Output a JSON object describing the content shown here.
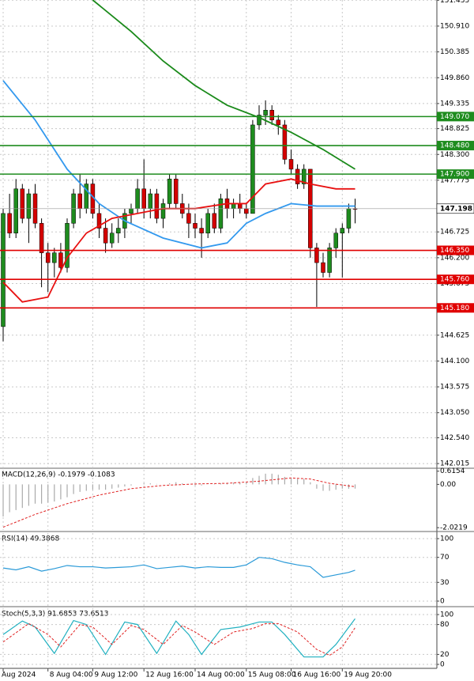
{
  "chart_data": {
    "type": "candlestick",
    "ylim": [
      141.92,
      151.44
    ],
    "yticks": [
      {
        "value": 151.435,
        "label": "151.435"
      },
      {
        "value": 150.91,
        "label": "150.910"
      },
      {
        "value": 150.385,
        "label": "150.385"
      },
      {
        "value": 149.86,
        "label": "149.860"
      },
      {
        "value": 149.335,
        "label": "149.335"
      },
      {
        "value": 148.825,
        "label": "148.825"
      },
      {
        "value": 148.3,
        "label": "148.300"
      },
      {
        "value": 147.775,
        "label": "147.775"
      },
      {
        "value": 146.725,
        "label": "146.725"
      },
      {
        "value": 146.2,
        "label": "146.200"
      },
      {
        "value": 145.675,
        "label": "145.675"
      },
      {
        "value": 144.625,
        "label": "144.625"
      },
      {
        "value": 144.1,
        "label": "144.100"
      },
      {
        "value": 143.575,
        "label": "143.575"
      },
      {
        "value": 143.05,
        "label": "143.050"
      },
      {
        "value": 142.54,
        "label": "142.540"
      },
      {
        "value": 142.015,
        "label": "142.015"
      }
    ],
    "grid": true,
    "up_color": "#1e8c1e",
    "down_color": "#d40000",
    "categories": [
      "Aug 2024",
      null,
      null,
      null,
      null,
      null,
      null,
      "8 Aug 04:00",
      null,
      null,
      null,
      null,
      null,
      null,
      "9 Aug 12:00",
      null,
      null,
      null,
      null,
      null,
      null,
      null,
      "12 Aug 16:00",
      null,
      null,
      null,
      null,
      null,
      null,
      null,
      "14 Aug 00:00",
      null,
      null,
      null,
      null,
      null,
      null,
      null,
      "15 Aug 08:00",
      null,
      null,
      null,
      null,
      null,
      null,
      "16 Aug 16:00",
      null,
      null,
      null,
      null,
      null,
      null,
      null,
      "19 Aug 20:00",
      null,
      null
    ],
    "open": [
      144.8,
      147.1,
      146.7,
      147.6,
      147.0,
      147.5,
      146.9,
      146.3,
      146.1,
      146.3,
      146.0,
      146.9,
      147.5,
      147.2,
      147.7,
      147.1,
      146.8,
      146.5,
      146.7,
      146.8,
      147.1,
      147.2,
      147.6,
      147.2,
      147.5,
      147.0,
      147.3,
      147.8,
      147.3,
      147.1,
      146.9,
      146.8,
      146.7,
      147.1,
      146.8,
      147.4,
      147.2,
      147.3,
      147.2,
      147.1,
      148.9,
      149.1,
      149.2,
      149.0,
      148.9,
      148.2,
      148.0,
      147.7,
      148.0,
      146.4,
      146.1,
      145.9,
      146.4,
      146.7,
      146.8,
      147.2
    ],
    "high": [
      147.2,
      147.5,
      147.8,
      147.7,
      147.6,
      147.7,
      147.0,
      146.5,
      146.4,
      146.5,
      147.0,
      147.6,
      147.9,
      147.8,
      147.8,
      147.3,
      147.0,
      146.9,
      147.0,
      147.2,
      147.3,
      147.8,
      148.2,
      147.6,
      147.6,
      147.4,
      147.9,
      147.9,
      147.5,
      147.3,
      147.1,
      147.0,
      147.2,
      147.3,
      147.5,
      147.6,
      147.4,
      147.5,
      147.3,
      149.0,
      149.3,
      149.4,
      149.3,
      149.1,
      149.0,
      148.4,
      148.1,
      148.1,
      148.0,
      146.5,
      146.3,
      146.5,
      146.8,
      146.9,
      147.3,
      147.4
    ],
    "low": [
      144.5,
      146.6,
      146.6,
      146.9,
      146.5,
      146.8,
      145.6,
      145.5,
      145.8,
      145.9,
      145.9,
      146.8,
      147.0,
      147.1,
      147.0,
      146.6,
      146.3,
      146.4,
      146.5,
      146.6,
      146.9,
      147.1,
      147.0,
      147.0,
      146.9,
      146.8,
      147.2,
      147.2,
      147.0,
      146.6,
      146.6,
      146.2,
      146.6,
      146.7,
      146.7,
      147.0,
      147.0,
      147.1,
      147.0,
      147.1,
      148.8,
      148.9,
      148.9,
      148.7,
      148.1,
      147.9,
      147.6,
      147.6,
      146.2,
      145.2,
      145.8,
      145.8,
      146.2,
      145.8,
      146.7,
      146.9
    ],
    "close": [
      147.1,
      146.7,
      147.6,
      147.0,
      147.5,
      146.9,
      146.3,
      146.1,
      146.3,
      146.0,
      146.9,
      147.5,
      147.2,
      147.7,
      147.1,
      146.8,
      146.5,
      146.7,
      146.8,
      147.1,
      147.2,
      147.6,
      147.2,
      147.5,
      147.0,
      147.3,
      147.8,
      147.3,
      147.1,
      146.9,
      146.8,
      146.7,
      147.1,
      146.8,
      147.4,
      147.2,
      147.3,
      147.2,
      147.1,
      148.9,
      149.1,
      149.2,
      149.0,
      148.9,
      148.2,
      148.0,
      147.7,
      148.0,
      146.4,
      146.1,
      145.9,
      146.4,
      146.7,
      146.8,
      147.2,
      147.198
    ],
    "lines": [
      {
        "color": "#3399ee",
        "x": [
          0,
          5,
          10,
          15,
          19,
          25,
          31,
          35,
          38,
          41,
          45,
          49,
          55
        ],
        "values": [
          149.8,
          149.0,
          148.0,
          147.3,
          146.95,
          146.6,
          146.4,
          146.5,
          146.9,
          147.1,
          147.3,
          147.25,
          147.25
        ]
      },
      {
        "color": "#e81010",
        "x": [
          0,
          3,
          7,
          10,
          13,
          17,
          21,
          25,
          30,
          35,
          38,
          41,
          45,
          48,
          52,
          55
        ],
        "values": [
          145.7,
          145.3,
          145.4,
          146.2,
          146.7,
          147.0,
          147.1,
          147.2,
          147.2,
          147.3,
          147.3,
          147.7,
          147.8,
          147.7,
          147.6,
          147.6
        ]
      },
      {
        "color": "#1a8a1a",
        "x": [
          14,
          20,
          25,
          30,
          35,
          40,
          45,
          50,
          55
        ],
        "values": [
          151.44,
          150.8,
          150.2,
          149.7,
          149.3,
          149.05,
          148.75,
          148.4,
          148.0
        ]
      }
    ],
    "levels": [
      {
        "value": 149.07,
        "label": "149.070",
        "color": "#1e8c1e"
      },
      {
        "value": 148.48,
        "label": "148.480",
        "color": "#1e8c1e"
      },
      {
        "value": 147.9,
        "label": "147.900",
        "color": "#1e8c1e"
      },
      {
        "value": 146.35,
        "label": "146.350",
        "color": "#e00000"
      },
      {
        "value": 145.76,
        "label": "145.760",
        "color": "#e00000"
      },
      {
        "value": 145.18,
        "label": "145.180",
        "color": "#e00000"
      }
    ],
    "current": {
      "value": 147.198,
      "label": "147.198"
    },
    "macd": {
      "title": "MACD(12,26,9) -0.1979 -0.1083",
      "ylim": [
        -2.09,
        0.68
      ],
      "yticks": [
        {
          "value": 0.6154,
          "label": "0.6154"
        },
        {
          "value": 0,
          "label": "0.00"
        },
        {
          "value": -2.0219,
          "label": "-2.0219"
        }
      ],
      "values": [
        -1.5,
        -1.3,
        -1.2,
        -1.1,
        -1.0,
        -0.9,
        -0.9,
        -0.85,
        -0.8,
        -0.7,
        -0.6,
        -0.45,
        -0.35,
        -0.3,
        -0.25,
        -0.25,
        -0.25,
        -0.2,
        -0.15,
        -0.1,
        -0.05,
        0.0,
        0.05,
        0.05,
        0.02,
        0.0,
        0.05,
        0.1,
        0.05,
        0.0,
        -0.05,
        -0.05,
        0.0,
        0.02,
        0.05,
        0.05,
        0.08,
        0.08,
        0.08,
        0.3,
        0.4,
        0.5,
        0.5,
        0.45,
        0.35,
        0.3,
        0.25,
        0.25,
        0.1,
        -0.2,
        -0.3,
        -0.3,
        -0.25,
        -0.2,
        -0.2,
        -0.1979
      ],
      "signal": {
        "color": "#e02020",
        "x": [
          0,
          5,
          10,
          15,
          20,
          25,
          30,
          35,
          40,
          45,
          48,
          51,
          55
        ],
        "values": [
          -2.0,
          -1.4,
          -0.9,
          -0.5,
          -0.2,
          -0.05,
          0.02,
          0.05,
          0.15,
          0.3,
          0.25,
          0.05,
          -0.1083
        ]
      }
    },
    "rsi": {
      "title": "RSI(14) 49.3868",
      "ylim": [
        0,
        100
      ],
      "yticks": [
        100,
        70,
        30,
        0
      ],
      "color": "#2a9ad8",
      "x": [
        0,
        2,
        4,
        6,
        8,
        10,
        12,
        14,
        16,
        18,
        20,
        22,
        24,
        26,
        28,
        30,
        32,
        34,
        36,
        38,
        40,
        42,
        44,
        46,
        48,
        50,
        52,
        54,
        55
      ],
      "values": [
        53,
        50,
        55,
        48,
        52,
        57,
        55,
        55,
        53,
        54,
        55,
        58,
        52,
        54,
        56,
        53,
        55,
        54,
        54,
        58,
        70,
        68,
        62,
        58,
        55,
        38,
        42,
        46,
        49.3868
      ]
    },
    "stoch": {
      "title": "Stoch(5,3,3) 91.6853 73.6513",
      "ylim": [
        0,
        100
      ],
      "yticks": [
        100,
        80,
        20,
        0
      ],
      "k": {
        "color": "#20b0c0",
        "x": [
          0,
          3,
          5,
          8,
          11,
          13,
          16,
          19,
          21,
          24,
          27,
          29,
          31,
          34,
          37,
          40,
          42,
          44,
          47,
          50,
          52,
          55
        ],
        "values": [
          60,
          87,
          75,
          22,
          88,
          80,
          20,
          85,
          80,
          22,
          87,
          60,
          20,
          70,
          75,
          85,
          85,
          60,
          15,
          15,
          40,
          91.6853
        ]
      },
      "d": {
        "color": "#e02020",
        "x": [
          0,
          4,
          7,
          9,
          12,
          14,
          17,
          20,
          22,
          25,
          28,
          30,
          33,
          36,
          39,
          41,
          43,
          46,
          49,
          51,
          53,
          55
        ],
        "values": [
          45,
          82,
          60,
          35,
          80,
          75,
          40,
          78,
          70,
          40,
          78,
          65,
          40,
          65,
          72,
          82,
          82,
          65,
          30,
          18,
          35,
          73.6513
        ]
      }
    }
  }
}
